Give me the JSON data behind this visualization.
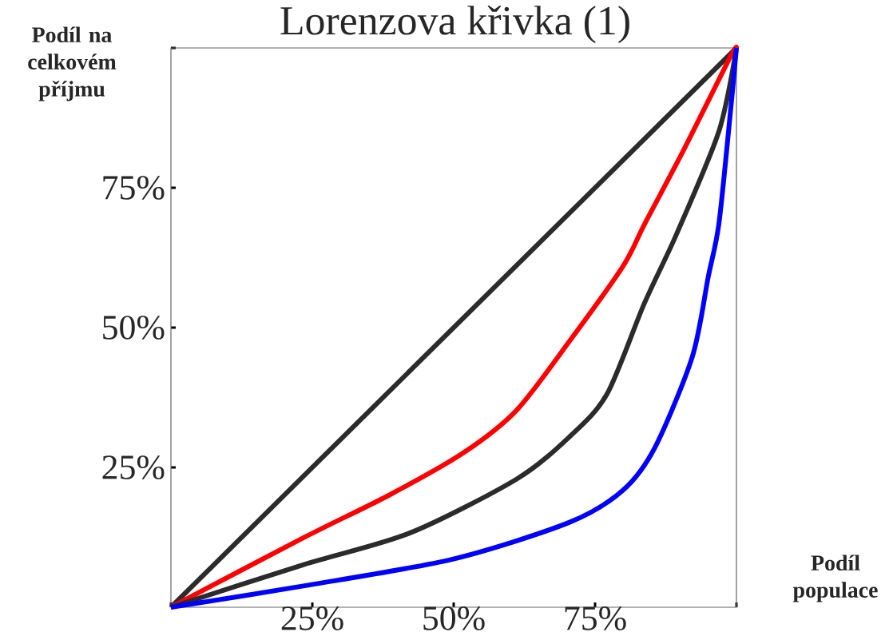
{
  "chart_data": {
    "type": "line",
    "title": "Lorenzova křivka (1)",
    "xlabel": "Podíl populace",
    "ylabel": "Podíl na celkovém příjmu",
    "xlim": [
      0,
      100
    ],
    "ylim": [
      0,
      100
    ],
    "xticks": [
      {
        "value": 0,
        "label": null
      },
      {
        "value": 25,
        "label": "25%"
      },
      {
        "value": 50,
        "label": "50%"
      },
      {
        "value": 75,
        "label": "75%"
      },
      {
        "value": 100,
        "label": null
      }
    ],
    "yticks": [
      {
        "value": 0,
        "label": null
      },
      {
        "value": 25,
        "label": "25%"
      },
      {
        "value": 50,
        "label": "50%"
      },
      {
        "value": 75,
        "label": "75%"
      },
      {
        "value": 100,
        "label": null
      }
    ],
    "marker": "none",
    "line_style": "solid",
    "series": [
      {
        "color": "#2b2b2b",
        "x": [
          0,
          100
        ],
        "values": [
          0,
          100
        ]
      },
      {
        "color": "#ff0000",
        "x": [
          0,
          23.4,
          38.5,
          51.7,
          61.1,
          70.5,
          79.9,
          83.8,
          90.8,
          98.9,
          100
        ],
        "values": [
          0,
          12.4,
          20,
          27.6,
          35.2,
          47.6,
          60.9,
          68.6,
          82,
          98.4,
          100
        ]
      },
      {
        "color": "#2b2b2b",
        "x": [
          0,
          23.4,
          42.3,
          61.1,
          70.5,
          77.1,
          83.7,
          89.4,
          96.9,
          100
        ],
        "values": [
          0,
          7.6,
          13.3,
          22.9,
          30.5,
          38.1,
          54.3,
          66.7,
          85.1,
          100
        ]
      },
      {
        "color": "#0000ff",
        "x": [
          0,
          23.4,
          49.8,
          70.5,
          79.9,
          85.6,
          92.2,
          95,
          96.9,
          98.9,
          100
        ],
        "values": [
          0,
          3.8,
          8.6,
          15.2,
          20.9,
          28.6,
          44.8,
          59,
          68.6,
          88.2,
          100
        ]
      }
    ]
  }
}
